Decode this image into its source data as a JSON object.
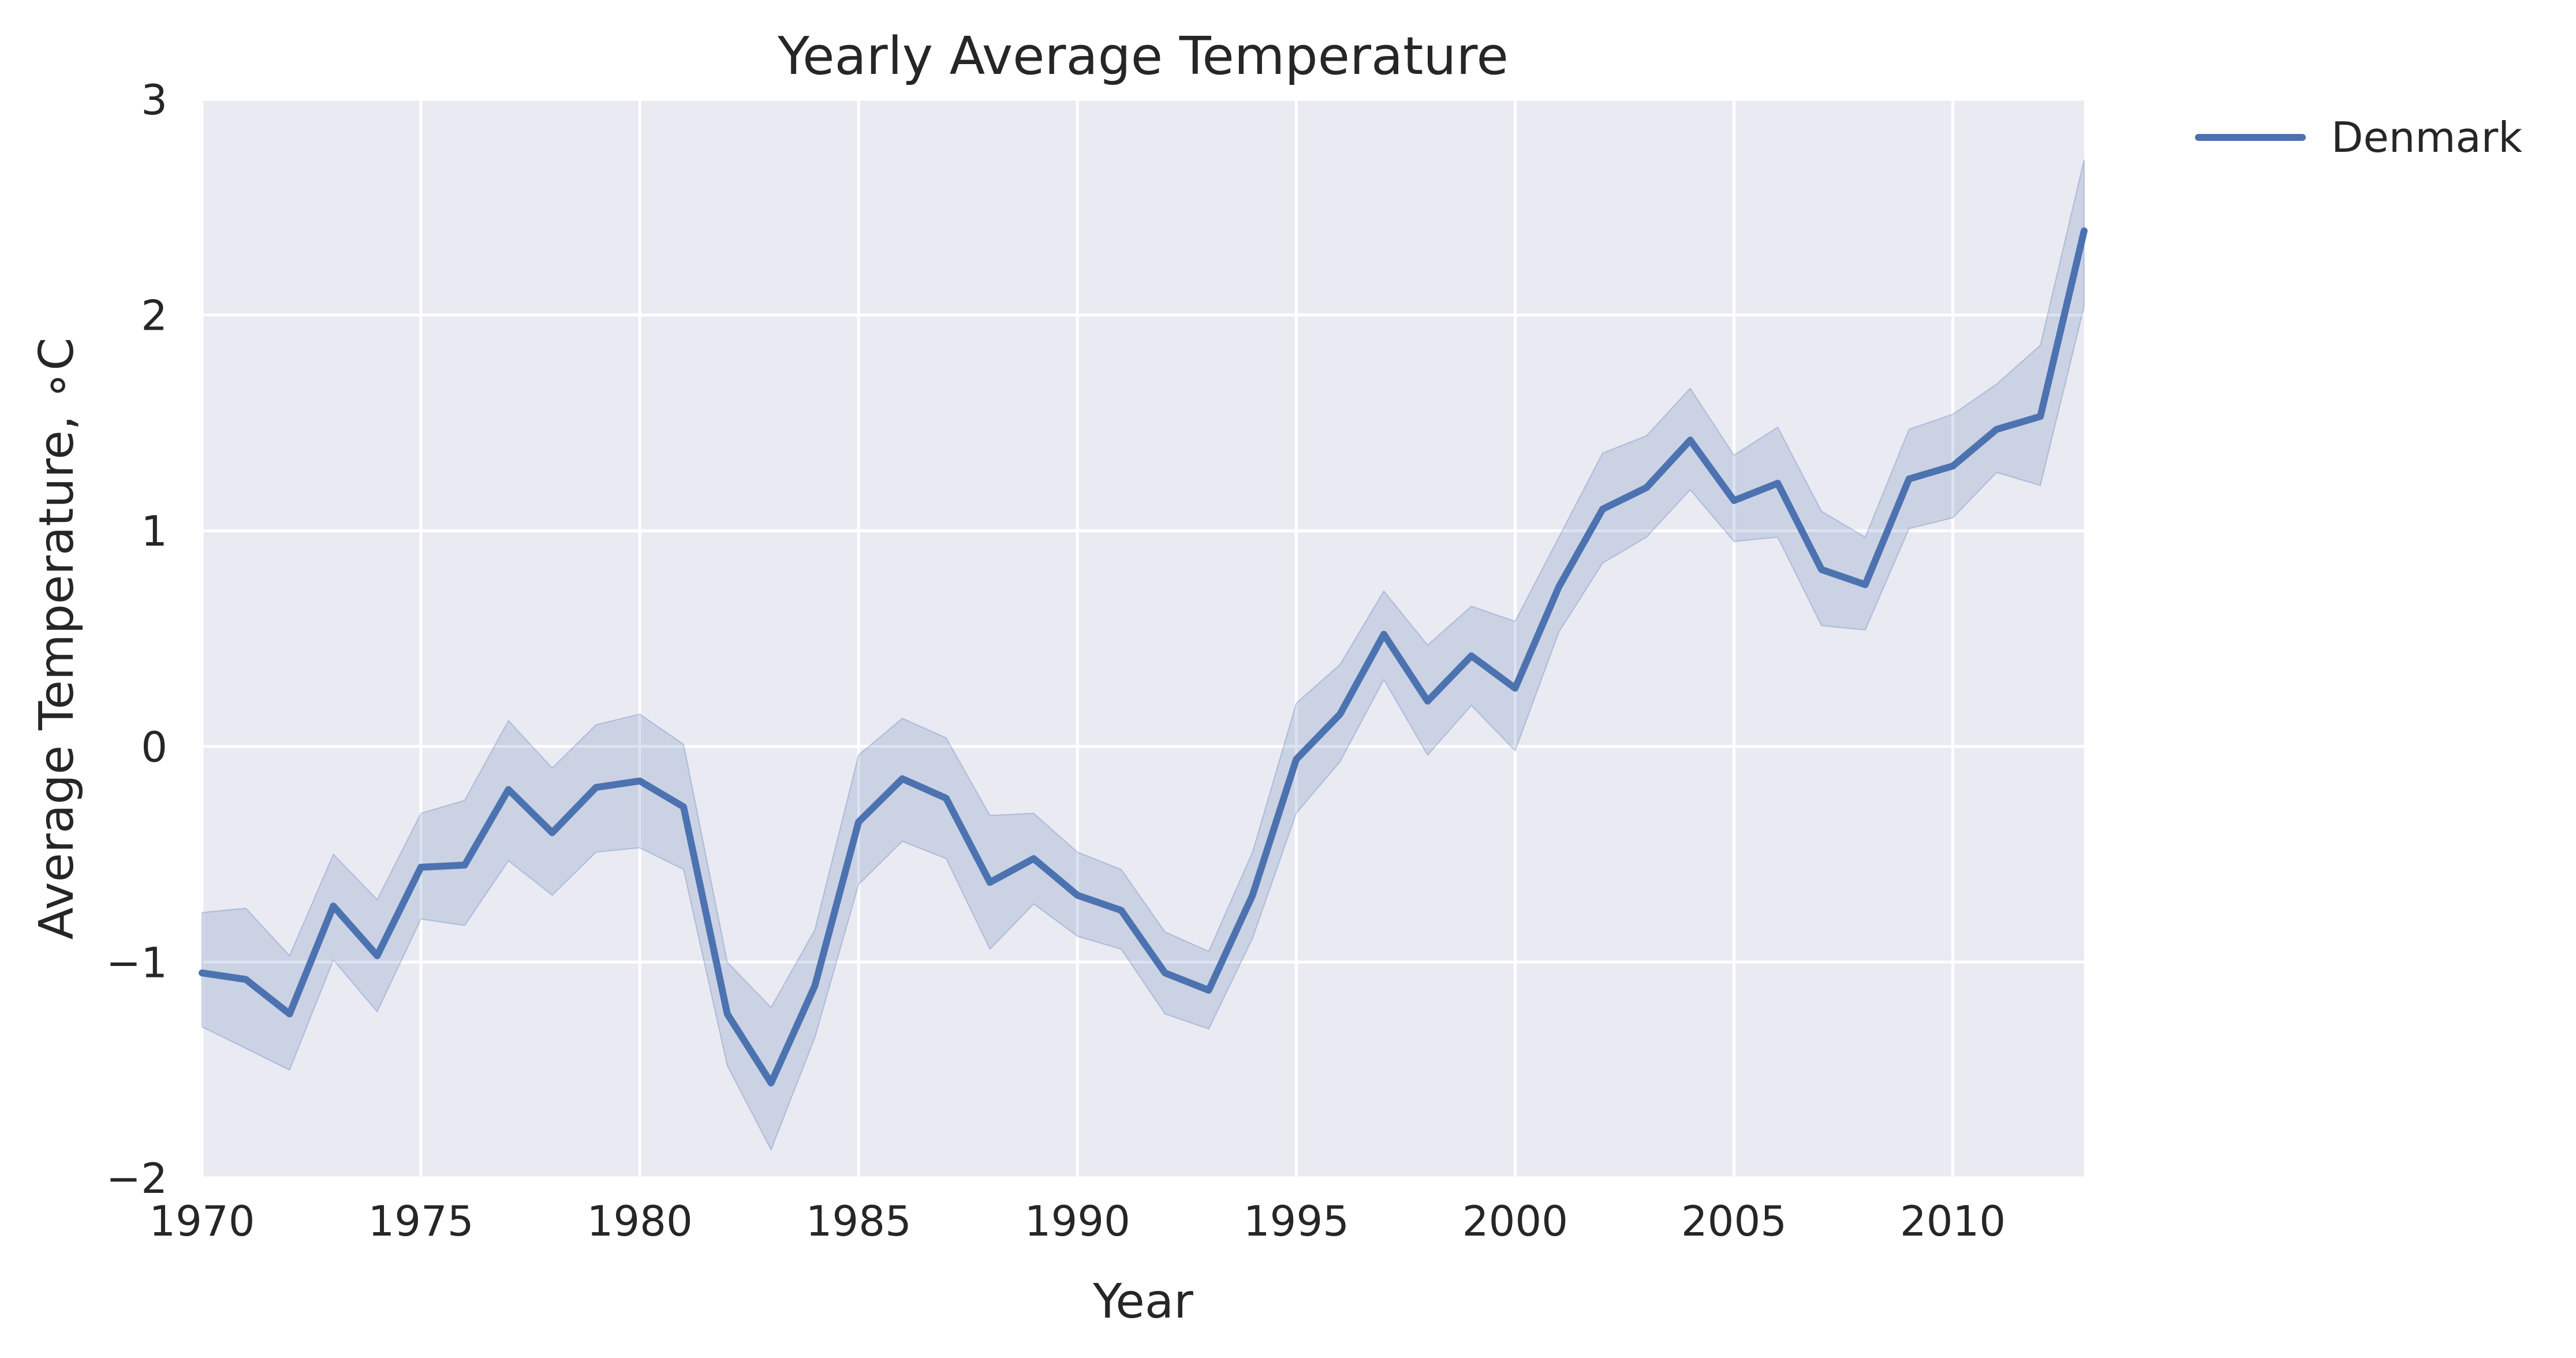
{
  "chart_data": {
    "type": "line",
    "title": "Yearly Average Temperature",
    "xlabel": "Year",
    "ylabel": "Average Temperature, ∘C",
    "xlim": [
      1970,
      2013
    ],
    "ylim": [
      -2,
      3
    ],
    "xticks": [
      1970,
      1975,
      1980,
      1985,
      1990,
      1995,
      2000,
      2005,
      2010
    ],
    "xtick_labels": [
      "1970",
      "1975",
      "1980",
      "1985",
      "1990",
      "1995",
      "2000",
      "2005",
      "2010"
    ],
    "yticks": [
      -2,
      -1,
      0,
      1,
      2,
      3
    ],
    "ytick_labels": [
      "−2",
      "−1",
      "0",
      "1",
      "2",
      "3"
    ],
    "grid": true,
    "legend_position": "outside-top-right",
    "background_color": "#eaeaf2",
    "series": [
      {
        "name": "Denmark",
        "color": "#4c72b0",
        "band_color": "#4c72b0",
        "x": [
          1970,
          1971,
          1972,
          1973,
          1974,
          1975,
          1976,
          1977,
          1978,
          1979,
          1980,
          1981,
          1982,
          1983,
          1984,
          1985,
          1986,
          1987,
          1988,
          1989,
          1990,
          1991,
          1992,
          1993,
          1994,
          1995,
          1996,
          1997,
          1998,
          1999,
          2000,
          2001,
          2002,
          2003,
          2004,
          2005,
          2006,
          2007,
          2008,
          2009,
          2010,
          2011,
          2012,
          2013
        ],
        "y": [
          -1.05,
          -1.08,
          -1.24,
          -0.74,
          -0.97,
          -0.56,
          -0.55,
          -0.2,
          -0.4,
          -0.19,
          -0.16,
          -0.28,
          -1.24,
          -1.56,
          -1.11,
          -0.35,
          -0.15,
          -0.24,
          -0.63,
          -0.52,
          -0.69,
          -0.76,
          -1.05,
          -1.13,
          -0.69,
          -0.06,
          0.15,
          0.52,
          0.21,
          0.42,
          0.27,
          0.74,
          1.1,
          1.2,
          1.42,
          1.14,
          1.22,
          0.82,
          0.75,
          1.24,
          1.3,
          1.47,
          1.53,
          2.39
        ],
        "lower": [
          -1.3,
          -1.4,
          -1.5,
          -0.99,
          -1.23,
          -0.8,
          -0.83,
          -0.53,
          -0.69,
          -0.49,
          -0.47,
          -0.57,
          -1.48,
          -1.87,
          -1.35,
          -0.64,
          -0.44,
          -0.52,
          -0.94,
          -0.73,
          -0.88,
          -0.94,
          -1.24,
          -1.31,
          -0.89,
          -0.31,
          -0.07,
          0.31,
          -0.04,
          0.19,
          -0.02,
          0.53,
          0.85,
          0.97,
          1.19,
          0.95,
          0.97,
          0.56,
          0.54,
          1.01,
          1.06,
          1.27,
          1.21,
          2.04
        ],
        "upper": [
          -0.77,
          -0.75,
          -0.97,
          -0.5,
          -0.71,
          -0.31,
          -0.25,
          0.12,
          -0.1,
          0.1,
          0.15,
          0.01,
          -1.0,
          -1.21,
          -0.85,
          -0.04,
          0.13,
          0.04,
          -0.32,
          -0.31,
          -0.49,
          -0.57,
          -0.86,
          -0.95,
          -0.49,
          0.2,
          0.38,
          0.72,
          0.47,
          0.65,
          0.58,
          0.97,
          1.36,
          1.44,
          1.66,
          1.35,
          1.48,
          1.09,
          0.97,
          1.47,
          1.54,
          1.68,
          1.86,
          2.72
        ]
      }
    ]
  }
}
